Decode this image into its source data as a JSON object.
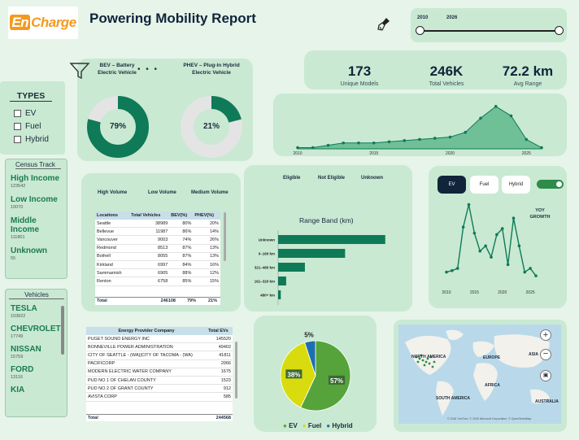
{
  "header": {
    "logo_en": "En",
    "logo_rest": "Charge",
    "title": "Powering Mobility Report",
    "slider_start": "2010",
    "slider_end": "2026"
  },
  "kpis": [
    {
      "value": "173",
      "label": "Unique Models"
    },
    {
      "value": "246K",
      "label": "Total Vehicles"
    },
    {
      "value": "72.2 km",
      "label": "Avg Range"
    }
  ],
  "types": {
    "title": "TYPES",
    "options": [
      "EV",
      "Fuel",
      "Hybrid"
    ]
  },
  "census": {
    "title": "Census Track",
    "items": [
      {
        "name": "High Income",
        "value": "123542"
      },
      {
        "name": "Low Income",
        "value": "10070"
      },
      {
        "name": "Middle Income",
        "value": "111801"
      },
      {
        "name": "Unknown",
        "value": "55"
      }
    ]
  },
  "vehicles": {
    "title": "Vehicles",
    "items": [
      {
        "name": "TESLA",
        "value": "103822"
      },
      {
        "name": "CHEVROLET",
        "value": "17749"
      },
      {
        "name": "NISSAN",
        "value": "15759"
      },
      {
        "name": "FORD",
        "value": "13116"
      },
      {
        "name": "KIA",
        "value": ""
      }
    ]
  },
  "donuts": {
    "bev_title": "BEV – Battery Electric Vehicle",
    "phev_title": "PHEV – Plug-in Hybrid Electric Vehicle",
    "bev_pct": "79%",
    "phev_pct": "21%",
    "bev_value": 79,
    "phev_value": 21,
    "bev_color": "#0f7a57",
    "phev_color": "#0f7a57"
  },
  "volume_tabs": [
    "High Volume",
    "Low Volume",
    "Medium Volume"
  ],
  "city_table": {
    "headers": [
      "Locations",
      "Total Vehicles",
      "BEV(%)",
      "PHEV(%)"
    ],
    "rows": [
      [
        "Seattle",
        "38989",
        "80%",
        "20%"
      ],
      [
        "Bellevue",
        "11987",
        "86%",
        "14%"
      ],
      [
        "Vancouver",
        "9003",
        "74%",
        "26%"
      ],
      [
        "Redmond",
        "8513",
        "87%",
        "13%"
      ],
      [
        "Bothell",
        "8055",
        "87%",
        "13%"
      ],
      [
        "Kirkland",
        "6997",
        "84%",
        "16%"
      ],
      [
        "Sammamish",
        "6905",
        "88%",
        "12%"
      ],
      [
        "Renton",
        "6758",
        "85%",
        "15%"
      ]
    ],
    "total": [
      "Total",
      "246108",
      "79%",
      "21%"
    ]
  },
  "provider_table": {
    "headers": [
      "Energy Provider Company",
      "Total EVs"
    ],
    "rows": [
      [
        "PUGET SOUND ENERGY INC",
        "145520"
      ],
      [
        "BONNEVILLE POWER ADMINISTRATION",
        "49402"
      ],
      [
        "CITY OF SEATTLE - (WA)|CITY OF TACOMA - (WA)",
        "41811"
      ],
      [
        "PACIFICORP",
        "2066"
      ],
      [
        "MODERN ELECTRIC WATER COMPANY",
        "1675"
      ],
      [
        "PUD NO 1 OF CHELAN COUNTY",
        "1523"
      ],
      [
        "PUD NO 2 OF GRANT COUNTY",
        "912"
      ],
      [
        "AVISTA CORP",
        "585"
      ]
    ],
    "total": [
      "Total",
      "244568"
    ]
  },
  "eligibility_tabs": [
    "Eligible",
    "Not Eligible",
    "Unknown"
  ],
  "range_band": {
    "title": "Range Band (km)",
    "color": "#0f7a57"
  },
  "type_tabs": [
    "EV",
    "Fuel",
    "Hybrid"
  ],
  "yoy_label": "YOY GROWTH",
  "pie": {
    "legend": [
      {
        "label": "EV",
        "color": "#55a33a"
      },
      {
        "label": "Fuel",
        "color": "#d8dc0e"
      },
      {
        "label": "Hybrid",
        "color": "#1f6fae"
      }
    ]
  },
  "map": {
    "labels": [
      "NORTH AMERICA",
      "EUROPE",
      "ASIA",
      "AFRICA",
      "SOUTH AMERICA",
      "AUSTRALIA"
    ],
    "attribution": "© 2026 TomTom, © 2026 Microsoft Corporation, © OpenStreetMap"
  },
  "chart_data": [
    {
      "type": "area",
      "title": "",
      "x": [
        2010,
        2011,
        2012,
        2013,
        2014,
        2015,
        2016,
        2017,
        2018,
        2019,
        2020,
        2021,
        2022,
        2023,
        2024,
        2025,
        2026
      ],
      "values": [
        1,
        1,
        3,
        5,
        5,
        5,
        6,
        7,
        8,
        9,
        10,
        14,
        26,
        36,
        28,
        8,
        1
      ],
      "xticks": [
        "2010",
        "2015",
        "2020",
        "2025"
      ],
      "grid": false
    },
    {
      "type": "bar",
      "orientation": "horizontal",
      "title": "Range Band (km)",
      "categories": [
        "Unknown",
        "0–160 km",
        "321–480 km",
        "161–320 km",
        "480+ km"
      ],
      "values": [
        160,
        100,
        40,
        12,
        4
      ]
    },
    {
      "type": "line",
      "title": "YOY GROWTH",
      "x": [
        2010,
        2011,
        2012,
        2013,
        2014,
        2015,
        2016,
        2017,
        2018,
        2019,
        2020,
        2021,
        2022,
        2023,
        2024,
        2025,
        2026
      ],
      "values": [
        20,
        22,
        25,
        80,
        110,
        72,
        48,
        55,
        40,
        70,
        78,
        30,
        92,
        55,
        20,
        25,
        15
      ],
      "xticks": [
        "2010",
        "2015",
        "2020",
        "2025"
      ]
    },
    {
      "type": "pie",
      "categories": [
        "EV",
        "Fuel",
        "Hybrid"
      ],
      "values": [
        57,
        38,
        5
      ],
      "labels": [
        "57%",
        "38%",
        "5%"
      ]
    }
  ]
}
